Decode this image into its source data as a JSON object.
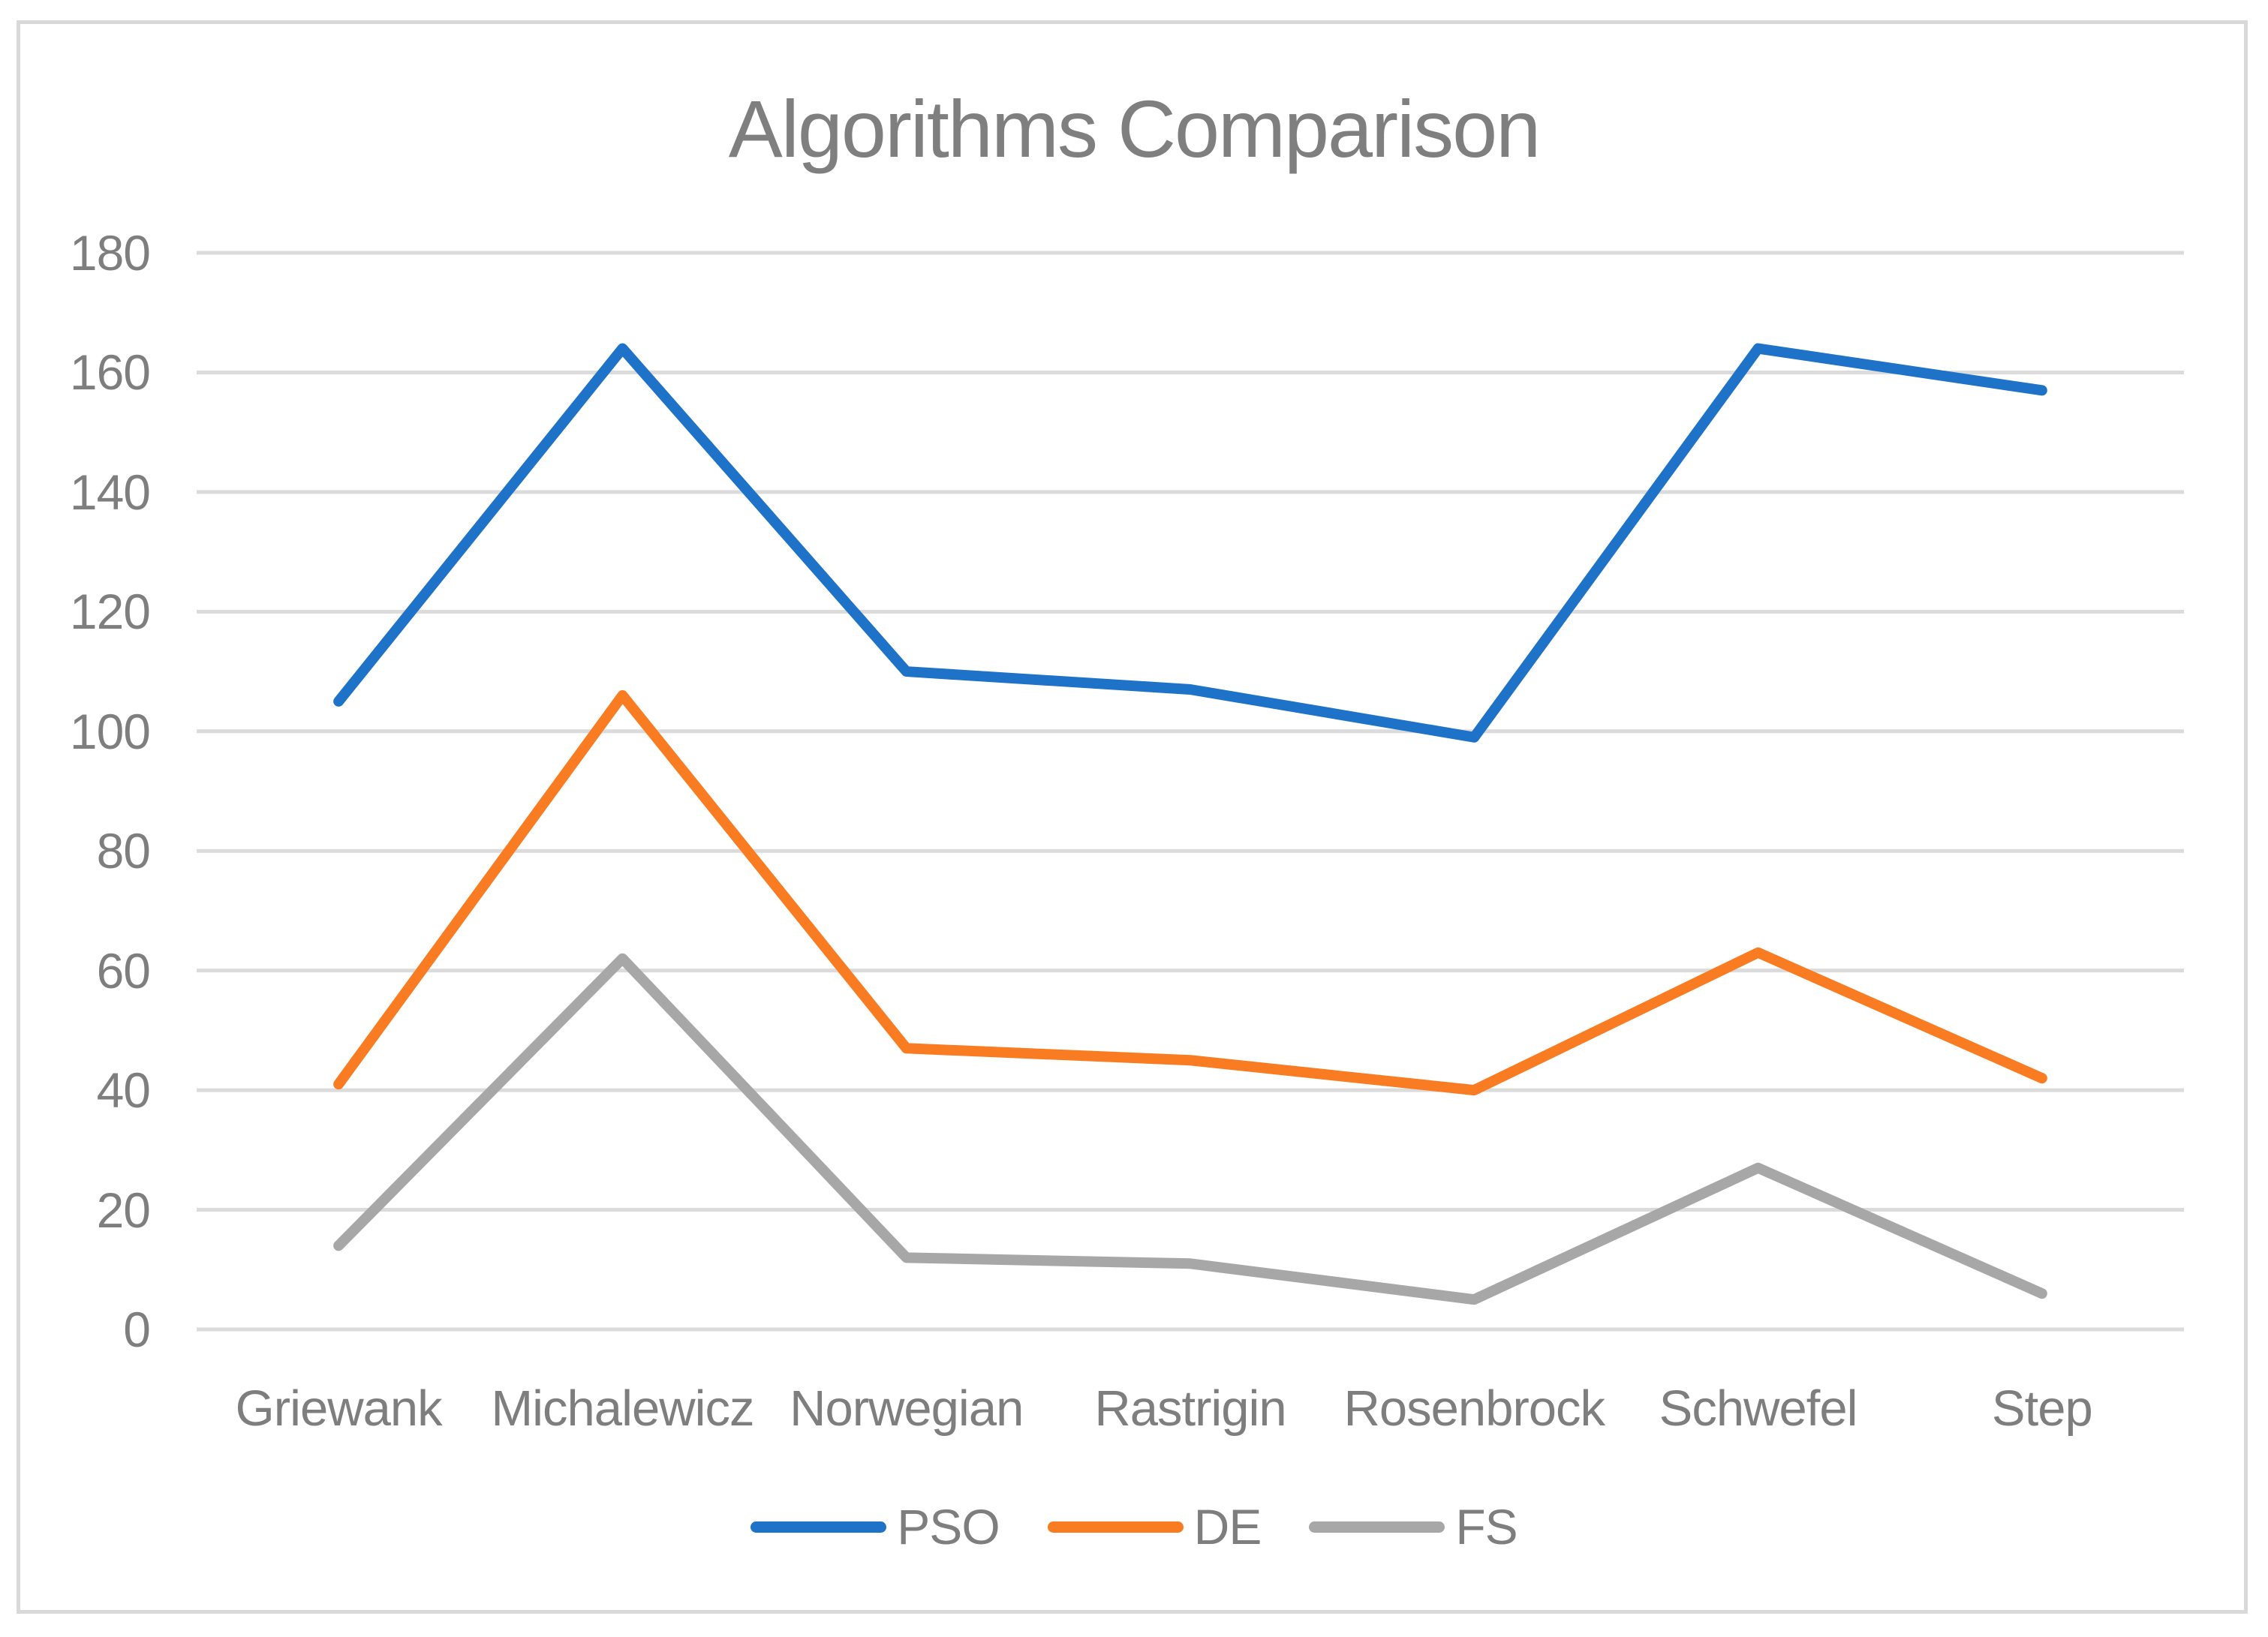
{
  "chart": {
    "title": "Algorithms Comparison"
  },
  "chart_data": {
    "type": "line",
    "title": "Algorithms Comparison",
    "categories": [
      "Griewank",
      "Michalewicz",
      "Norwegian",
      "Rastrigin",
      "Rosenbrock",
      "Schwefel",
      "Step"
    ],
    "series": [
      {
        "name": "PSO",
        "color": "#1E73C8",
        "values": [
          105,
          164,
          110,
          107,
          99,
          164,
          157
        ]
      },
      {
        "name": "DE",
        "color": "#F97C22",
        "values": [
          41,
          106,
          47,
          45,
          40,
          63,
          42
        ]
      },
      {
        "name": "FS",
        "color": "#A7A7A7",
        "values": [
          14,
          62,
          12,
          11,
          5,
          27,
          6
        ]
      }
    ],
    "ylim": [
      0,
      180
    ],
    "ytick_step": 20,
    "ytick_labels": [
      "0",
      "20",
      "40",
      "60",
      "80",
      "100",
      "120",
      "140",
      "160",
      "180"
    ],
    "xlabel": "",
    "ylabel": "",
    "grid": "horizontal",
    "legend_position": "bottom"
  },
  "colors": {
    "grid": "#DBDBDB",
    "border": "#D9D9D9",
    "axis_text": "#7E7E7E",
    "title_text": "#7F7F7F",
    "background": "#FFFFFF"
  }
}
